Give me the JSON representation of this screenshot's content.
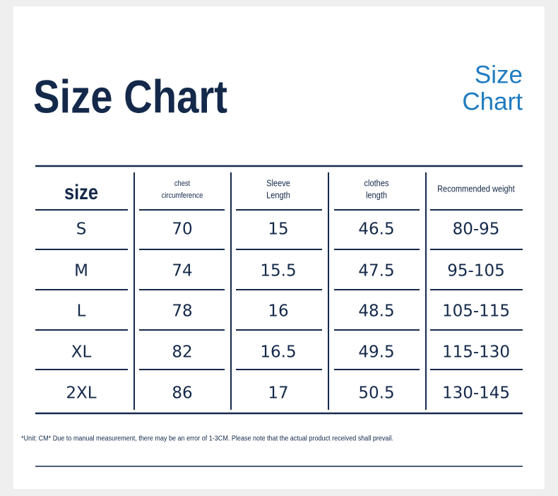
{
  "header": {
    "title": "Size Chart",
    "logo": [
      "Size",
      "Chart"
    ]
  },
  "table": {
    "columns": [
      [
        "size"
      ],
      [
        "chest",
        "circumference"
      ],
      [
        "Sleeve",
        "Length"
      ],
      [
        "clothes",
        "length"
      ],
      [
        "Recommended weight"
      ]
    ],
    "rows": [
      [
        "S",
        70,
        15,
        46.5,
        "80-95"
      ],
      [
        "M",
        74,
        15.5,
        47.5,
        "95-105"
      ],
      [
        "L",
        78,
        16,
        48.5,
        "105-115"
      ],
      [
        "XL",
        82,
        16.5,
        49.5,
        "115-130"
      ],
      [
        "2XL",
        86,
        17,
        50.5,
        "130-145"
      ]
    ]
  },
  "note": "*Unit: CM* Due to manual measurement, there may be an error of 1-3CM. Please note that the actual product received shall prevail."
}
